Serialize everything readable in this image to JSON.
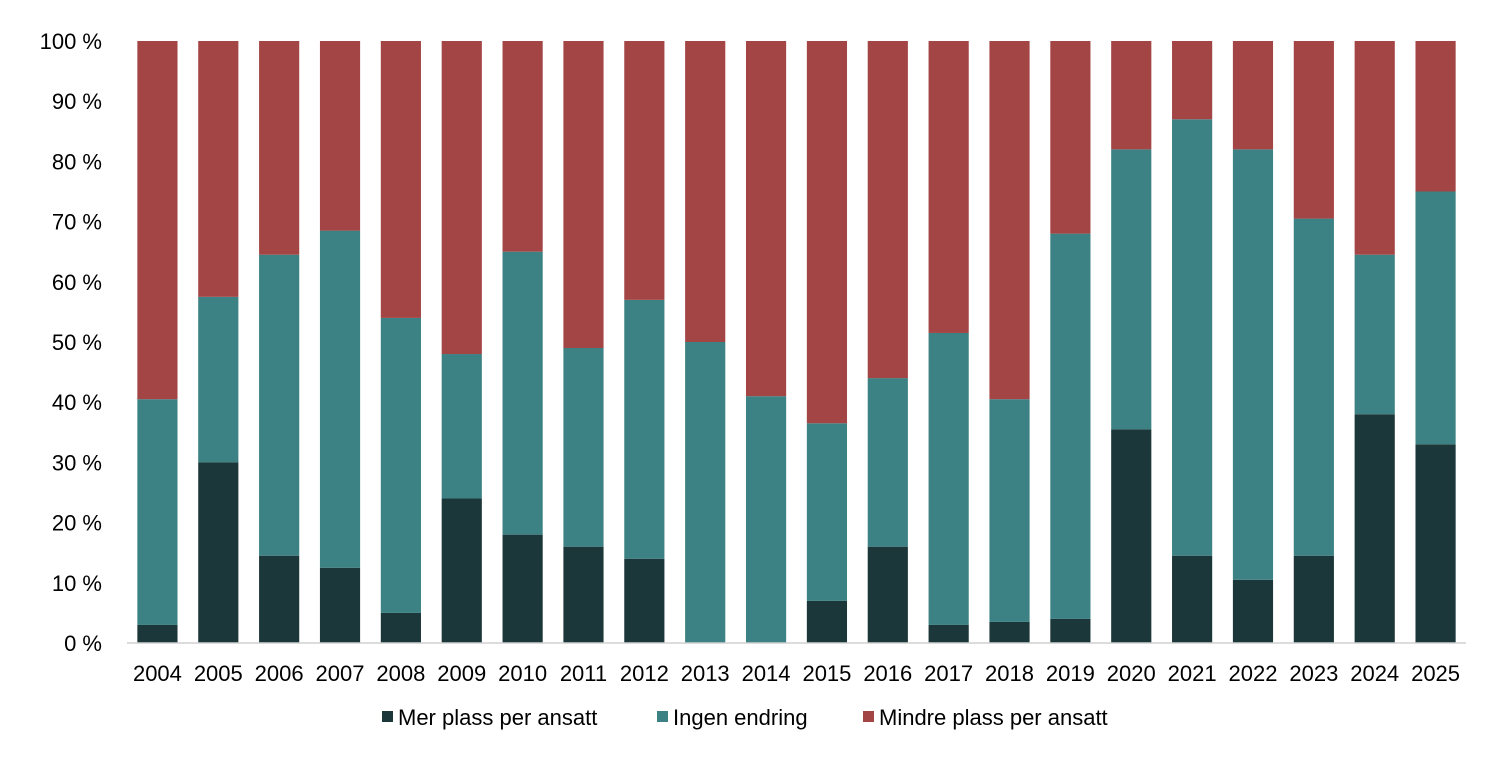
{
  "chart_data": {
    "type": "bar",
    "stacked": true,
    "categories": [
      "2004",
      "2005",
      "2006",
      "2007",
      "2008",
      "2009",
      "2010",
      "2011",
      "2012",
      "2013",
      "2014",
      "2015",
      "2016",
      "2017",
      "2018",
      "2019",
      "2020",
      "2021",
      "2022",
      "2023",
      "2024",
      "2025"
    ],
    "series": [
      {
        "name": "Mer plass per ansatt",
        "color": "#1c3739",
        "values": [
          3,
          30,
          14.5,
          12.5,
          5,
          24,
          18,
          16,
          14,
          0,
          0,
          7,
          16,
          3,
          3.5,
          4,
          35.5,
          14.5,
          10.5,
          14.5,
          38,
          33
        ]
      },
      {
        "name": "Ingen endring",
        "color": "#3c8183",
        "values": [
          37.5,
          27.5,
          50,
          56,
          49,
          24,
          47,
          33,
          43,
          50,
          41,
          29.5,
          28,
          48.5,
          37,
          64,
          46.5,
          72.5,
          71.5,
          56,
          26.5,
          42
        ]
      },
      {
        "name": "Mindre plass per ansatt",
        "color": "#a34544",
        "values": [
          59.5,
          42.5,
          35.5,
          31.5,
          46,
          52,
          35,
          51,
          43,
          50,
          59,
          63.5,
          56,
          48.5,
          59.5,
          32,
          18,
          13,
          18,
          29.5,
          35.5,
          25
        ]
      }
    ],
    "yticks": [
      "0 %",
      "10 %",
      "20 %",
      "30 %",
      "40 %",
      "50 %",
      "60 %",
      "70 %",
      "80 %",
      "90 %",
      "100 %"
    ],
    "ylim": [
      0,
      100
    ],
    "grid": false,
    "legend_position": "bottom"
  }
}
